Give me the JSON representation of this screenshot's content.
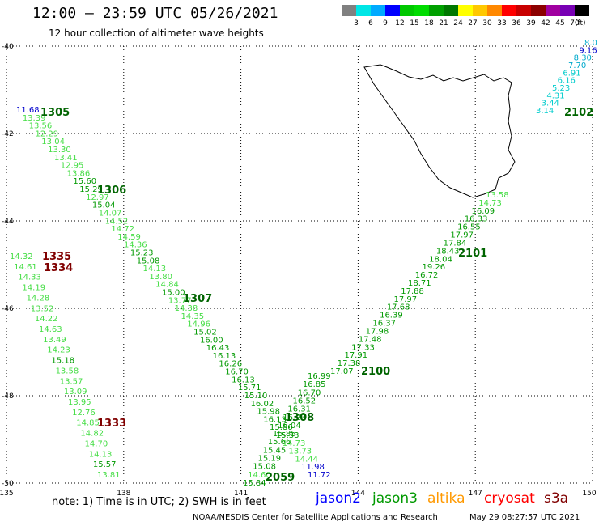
{
  "header": {
    "title": "12:00 – 23:59 UTC 05/26/2021",
    "subtitle": "12 hour collection of altimeter wave heights"
  },
  "colorbar": {
    "colors": [
      "#808080",
      "#00e6e6",
      "#00aaff",
      "#0000ff",
      "#00c800",
      "#00dc00",
      "#00a000",
      "#007800",
      "#ffff00",
      "#ffc800",
      "#ff8800",
      "#ff0000",
      "#c80000",
      "#8c0000",
      "#a000a0",
      "#7800b4",
      "#000000"
    ],
    "labels": [
      "3",
      "6",
      "9",
      "12",
      "15",
      "18",
      "21",
      "24",
      "27",
      "30",
      "33",
      "36",
      "39",
      "42",
      "45",
      "70"
    ],
    "unit": "(ft)"
  },
  "map": {
    "lon_range": [
      135,
      150
    ],
    "lat_range": [
      -50,
      -40
    ],
    "lon_ticks": [
      "135",
      "138",
      "141",
      "144",
      "147",
      "150"
    ],
    "lat_ticks": [
      "-40",
      "-42",
      "-44",
      "-46",
      "-48",
      "-50"
    ]
  },
  "tracks": {
    "1305": {
      "label": "1305",
      "color": "#006400",
      "points": [
        [
          "11.68",
          "#0000cc"
        ],
        [
          "13.39",
          "#44dd44"
        ],
        [
          "13.56",
          "#44dd44"
        ],
        [
          "12.29",
          "#44dd44"
        ],
        [
          "13.04",
          "#44dd44"
        ],
        [
          "13.30",
          "#44dd44"
        ],
        [
          "13.41",
          "#44dd44"
        ],
        [
          "12.95",
          "#44dd44"
        ],
        [
          "13.86",
          "#44dd44"
        ],
        [
          "15.60",
          "#009900"
        ],
        [
          "15.29",
          "#009900"
        ],
        [
          "12.97",
          "#44dd44"
        ],
        [
          "15.04",
          "#009900"
        ],
        [
          "14.07",
          "#44dd44"
        ],
        [
          "14.52",
          "#44dd44"
        ],
        [
          "14.72",
          "#44dd44"
        ],
        [
          "14.59",
          "#44dd44"
        ],
        [
          "14.36",
          "#44dd44"
        ],
        [
          "15.23",
          "#009900"
        ],
        [
          "15.08",
          "#009900"
        ],
        [
          "14.13",
          "#44dd44"
        ],
        [
          "13.80",
          "#44dd44"
        ],
        [
          "14.84",
          "#44dd44"
        ],
        [
          "15.00",
          "#009900"
        ],
        [
          "13.77",
          "#44dd44"
        ],
        [
          "14.38",
          "#44dd44"
        ],
        [
          "14.35",
          "#44dd44"
        ],
        [
          "14.96",
          "#44dd44"
        ],
        [
          "15.02",
          "#009900"
        ],
        [
          "16.00",
          "#009900"
        ],
        [
          "16.43",
          "#009900"
        ],
        [
          "16.13",
          "#009900"
        ],
        [
          "16.26",
          "#009900"
        ],
        [
          "16.70",
          "#009900"
        ],
        [
          "16.13",
          "#009900"
        ],
        [
          "15.71",
          "#009900"
        ],
        [
          "15.10",
          "#009900"
        ],
        [
          "16.02",
          "#009900"
        ],
        [
          "15.98",
          "#009900"
        ],
        [
          "16.13",
          "#009900"
        ],
        [
          "15.86",
          "#009900"
        ],
        [
          "15.33",
          "#009900"
        ],
        [
          "14.73",
          "#44dd44"
        ],
        [
          "13.73",
          "#44dd44"
        ],
        [
          "14.44",
          "#44dd44"
        ],
        [
          "11.98",
          "#0000cc"
        ],
        [
          "11.72",
          "#0000cc"
        ]
      ]
    },
    "1306": {
      "label": "1306"
    },
    "1307": {
      "label": "1307"
    },
    "1308": {
      "label": "1308"
    },
    "1333": {
      "label": "1333",
      "color": "#800000"
    },
    "1334": {
      "label": "1334",
      "color": "#800000"
    },
    "1335": {
      "label": "1335",
      "color": "#800000",
      "points": [
        [
          "14.32",
          "#44dd44"
        ],
        [
          "14.61",
          "#44dd44"
        ],
        [
          "14.33",
          "#44dd44"
        ],
        [
          "14.19",
          "#44dd44"
        ],
        [
          "14.28",
          "#44dd44"
        ],
        [
          "13.52",
          "#44dd44"
        ],
        [
          "14.22",
          "#44dd44"
        ],
        [
          "14.63",
          "#44dd44"
        ],
        [
          "13.49",
          "#44dd44"
        ],
        [
          "14.23",
          "#44dd44"
        ],
        [
          "15.18",
          "#009900"
        ],
        [
          "13.58",
          "#44dd44"
        ],
        [
          "13.57",
          "#44dd44"
        ],
        [
          "13.09",
          "#44dd44"
        ],
        [
          "13.95",
          "#44dd44"
        ],
        [
          "12.76",
          "#44dd44"
        ],
        [
          "14.85",
          "#44dd44"
        ],
        [
          "14.82",
          "#44dd44"
        ],
        [
          "14.70",
          "#44dd44"
        ],
        [
          "14.13",
          "#44dd44"
        ],
        [
          "15.57",
          "#009900"
        ],
        [
          "13.81",
          "#44dd44"
        ]
      ]
    },
    "2059": {
      "label": "2059",
      "color": "#006400",
      "points": [
        [
          "15.84",
          "#009900"
        ],
        [
          "14.60",
          "#44dd44"
        ],
        [
          "15.08",
          "#009900"
        ],
        [
          "15.19",
          "#009900"
        ],
        [
          "15.45",
          "#009900"
        ],
        [
          "15.66",
          "#009900"
        ],
        [
          "15.85",
          "#009900"
        ],
        [
          "16.04",
          "#009900"
        ],
        [
          "16.23",
          "#009900"
        ],
        [
          "16.31",
          "#009900"
        ],
        [
          "16.52",
          "#009900"
        ],
        [
          "16.70",
          "#009900"
        ],
        [
          "16.85",
          "#009900"
        ],
        [
          "16.99",
          "#009900"
        ]
      ]
    },
    "2100": {
      "label": "2100",
      "color": "#006400",
      "points": [
        [
          "17.07",
          "#009900"
        ],
        [
          "17.38",
          "#009900"
        ],
        [
          "17.91",
          "#009900"
        ],
        [
          "17.33",
          "#009900"
        ],
        [
          "17.48",
          "#009900"
        ],
        [
          "17.98",
          "#009900"
        ],
        [
          "16.37",
          "#009900"
        ],
        [
          "16.39",
          "#009900"
        ],
        [
          "17.68",
          "#009900"
        ],
        [
          "17.97",
          "#009900"
        ],
        [
          "17.88",
          "#009900"
        ],
        [
          "18.71",
          "#009900"
        ],
        [
          "16.72",
          "#009900"
        ],
        [
          "19.26",
          "#009900"
        ],
        [
          "18.04",
          "#009900"
        ],
        [
          "18.43",
          "#009900"
        ],
        [
          "17.84",
          "#009900"
        ],
        [
          "17.97",
          "#009900"
        ],
        [
          "16.55",
          "#009900"
        ],
        [
          "16.33",
          "#009900"
        ],
        [
          "16.09",
          "#009900"
        ],
        [
          "14.73",
          "#44dd44"
        ],
        [
          "13.58",
          "#44dd44"
        ]
      ]
    },
    "2101": {
      "label": "2101",
      "color": "#006400"
    },
    "2102": {
      "label": "2102",
      "color": "#006400",
      "points": [
        [
          "3.14",
          "#00cccc"
        ],
        [
          "3.44",
          "#00cccc"
        ],
        [
          "4.31",
          "#00cccc"
        ],
        [
          "5.23",
          "#00cccc"
        ],
        [
          "6.16",
          "#00cccc"
        ],
        [
          "6.91",
          "#00cccc"
        ],
        [
          "7.70",
          "#00aacc"
        ],
        [
          "8.30",
          "#00aacc"
        ],
        [
          "9.16",
          "#0000cc"
        ],
        [
          "8.07",
          "#00aacc"
        ]
      ]
    }
  },
  "footer": {
    "note": "note:  1) Time is in UTC; 2) SWH is in feet",
    "legend": [
      {
        "name": "jason2",
        "color": "#0000ff"
      },
      {
        "name": "jason3",
        "color": "#009900"
      },
      {
        "name": "altika",
        "color": "#ff9900"
      },
      {
        "name": "cryosat",
        "color": "#ff0000"
      },
      {
        "name": "s3a",
        "color": "#800000"
      }
    ],
    "credit": "NOAA/NESDIS Center for Satellite Applications and Research",
    "timestamp": "May 29 08:27:57 UTC 2021"
  }
}
